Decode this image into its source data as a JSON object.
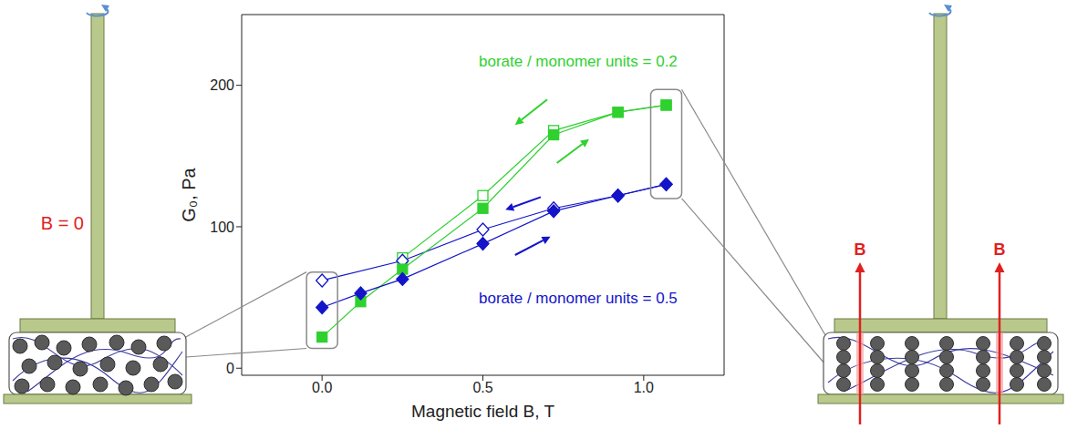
{
  "chart_data": {
    "type": "line",
    "x_label": "Magnetic field B, T",
    "y_label": "G₀, Pa",
    "xlim": [
      -0.25,
      1.25
    ],
    "xticks": [
      {
        "value": 0,
        "label": "0.0"
      },
      {
        "value": 0.5,
        "label": "0.5"
      },
      {
        "value": 1,
        "label": "1.0"
      }
    ],
    "ylim": [
      -5,
      250
    ],
    "yticks": [
      0,
      100,
      200
    ],
    "series": [
      {
        "name": "borate / monomer units = 0.2",
        "color": "#2fd12f",
        "marker": "square",
        "increasing": {
          "x": [
            0,
            0.12,
            0.25,
            0.5,
            0.72,
            0.92,
            1.07
          ],
          "values": [
            22,
            47,
            70,
            113,
            165,
            181,
            186
          ]
        },
        "decreasing": {
          "x": [
            1.07,
            0.92,
            0.72,
            0.5,
            0.25
          ],
          "values": [
            186,
            181,
            168,
            122,
            78
          ]
        }
      },
      {
        "name": "borate / monomer units = 0.5",
        "color": "#1414c8",
        "marker": "diamond",
        "increasing": {
          "x": [
            0,
            0.12,
            0.25,
            0.5,
            0.72,
            0.92,
            1.07
          ],
          "values": [
            43,
            53,
            63,
            88,
            111,
            122,
            130
          ]
        },
        "decreasing": {
          "x": [
            1.07,
            0.92,
            0.72,
            0.5,
            0.25,
            0
          ],
          "values": [
            130,
            122,
            113,
            98,
            76,
            62
          ]
        }
      }
    ]
  },
  "diagrams": {
    "left": {
      "field_label": "B = 0"
    },
    "right": {
      "field_labels": [
        "B",
        "B"
      ]
    }
  }
}
